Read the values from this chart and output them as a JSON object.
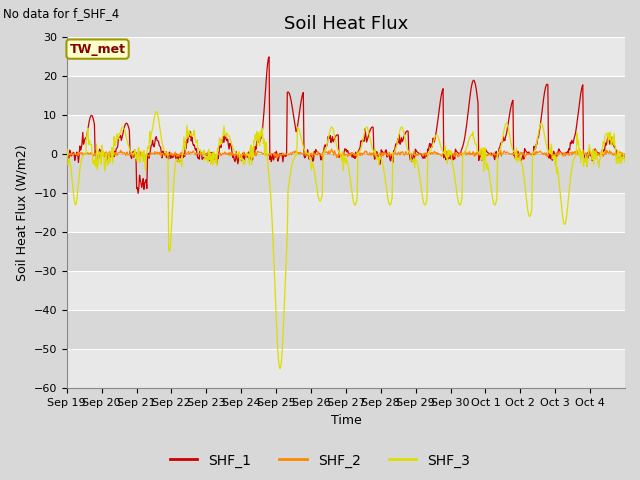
{
  "title": "Soil Heat Flux",
  "no_data_text": "No data for f_SHF_4",
  "ylabel": "Soil Heat Flux (W/m2)",
  "xlabel": "Time",
  "ylim": [
    -60,
    30
  ],
  "yticks": [
    -60,
    -50,
    -40,
    -30,
    -20,
    -10,
    0,
    10,
    20,
    30
  ],
  "xtick_labels": [
    "Sep 19",
    "Sep 20",
    "Sep 21",
    "Sep 22",
    "Sep 23",
    "Sep 24",
    "Sep 25",
    "Sep 26",
    "Sep 27",
    "Sep 28",
    "Sep 29",
    "Sep 30",
    "Oct 1",
    "Oct 2",
    "Oct 3",
    "Oct 4"
  ],
  "legend_box_label": "TW_met",
  "legend_entries": [
    "SHF_1",
    "SHF_2",
    "SHF_3"
  ],
  "shf1_color": "#cc0000",
  "shf2_color": "#ff8800",
  "shf3_color": "#dddd00",
  "bg_color": "#d8d8d8",
  "plot_bg_color": "#d8d8d8",
  "band_color": "#e8e8e8",
  "title_fontsize": 13,
  "label_fontsize": 9,
  "tick_fontsize": 8
}
